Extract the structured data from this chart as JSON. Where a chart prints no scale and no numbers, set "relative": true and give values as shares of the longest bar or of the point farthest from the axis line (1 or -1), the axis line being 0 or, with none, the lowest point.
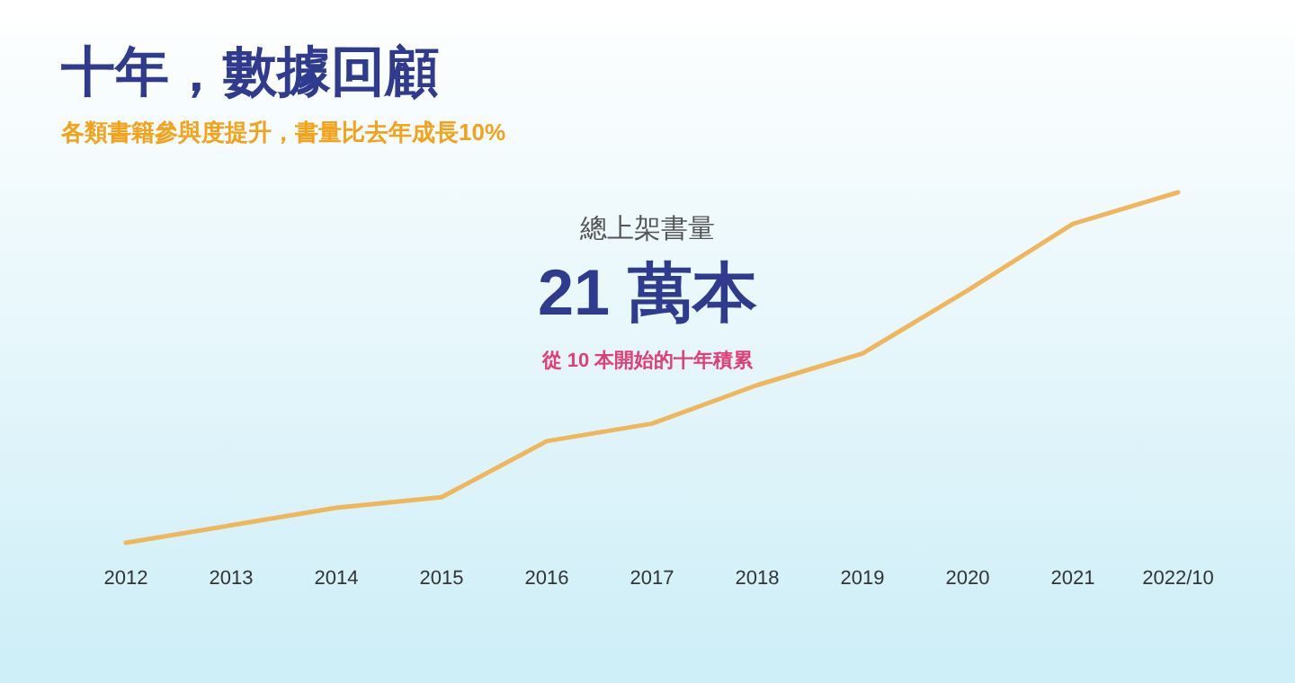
{
  "chart_data": {
    "type": "line",
    "title": "十年，數據回顧",
    "subtitle": "各類書籍參與度提升，書量比去年成長10%",
    "categories": [
      "2012",
      "2013",
      "2014",
      "2015",
      "2016",
      "2017",
      "2018",
      "2019",
      "2020",
      "2021",
      "2022/10"
    ],
    "relative": true,
    "series": [
      {
        "color": "#efb65c",
        "values": [
          0,
          0.05,
          0.1,
          0.13,
          0.29,
          0.34,
          0.45,
          0.54,
          0.72,
          0.91,
          1
        ]
      }
    ],
    "annotations": [
      "總上架書量",
      "21 萬本",
      "從 10 本開始的十年積累"
    ],
    "grid": false,
    "marker": "none",
    "line_style": "solid"
  }
}
